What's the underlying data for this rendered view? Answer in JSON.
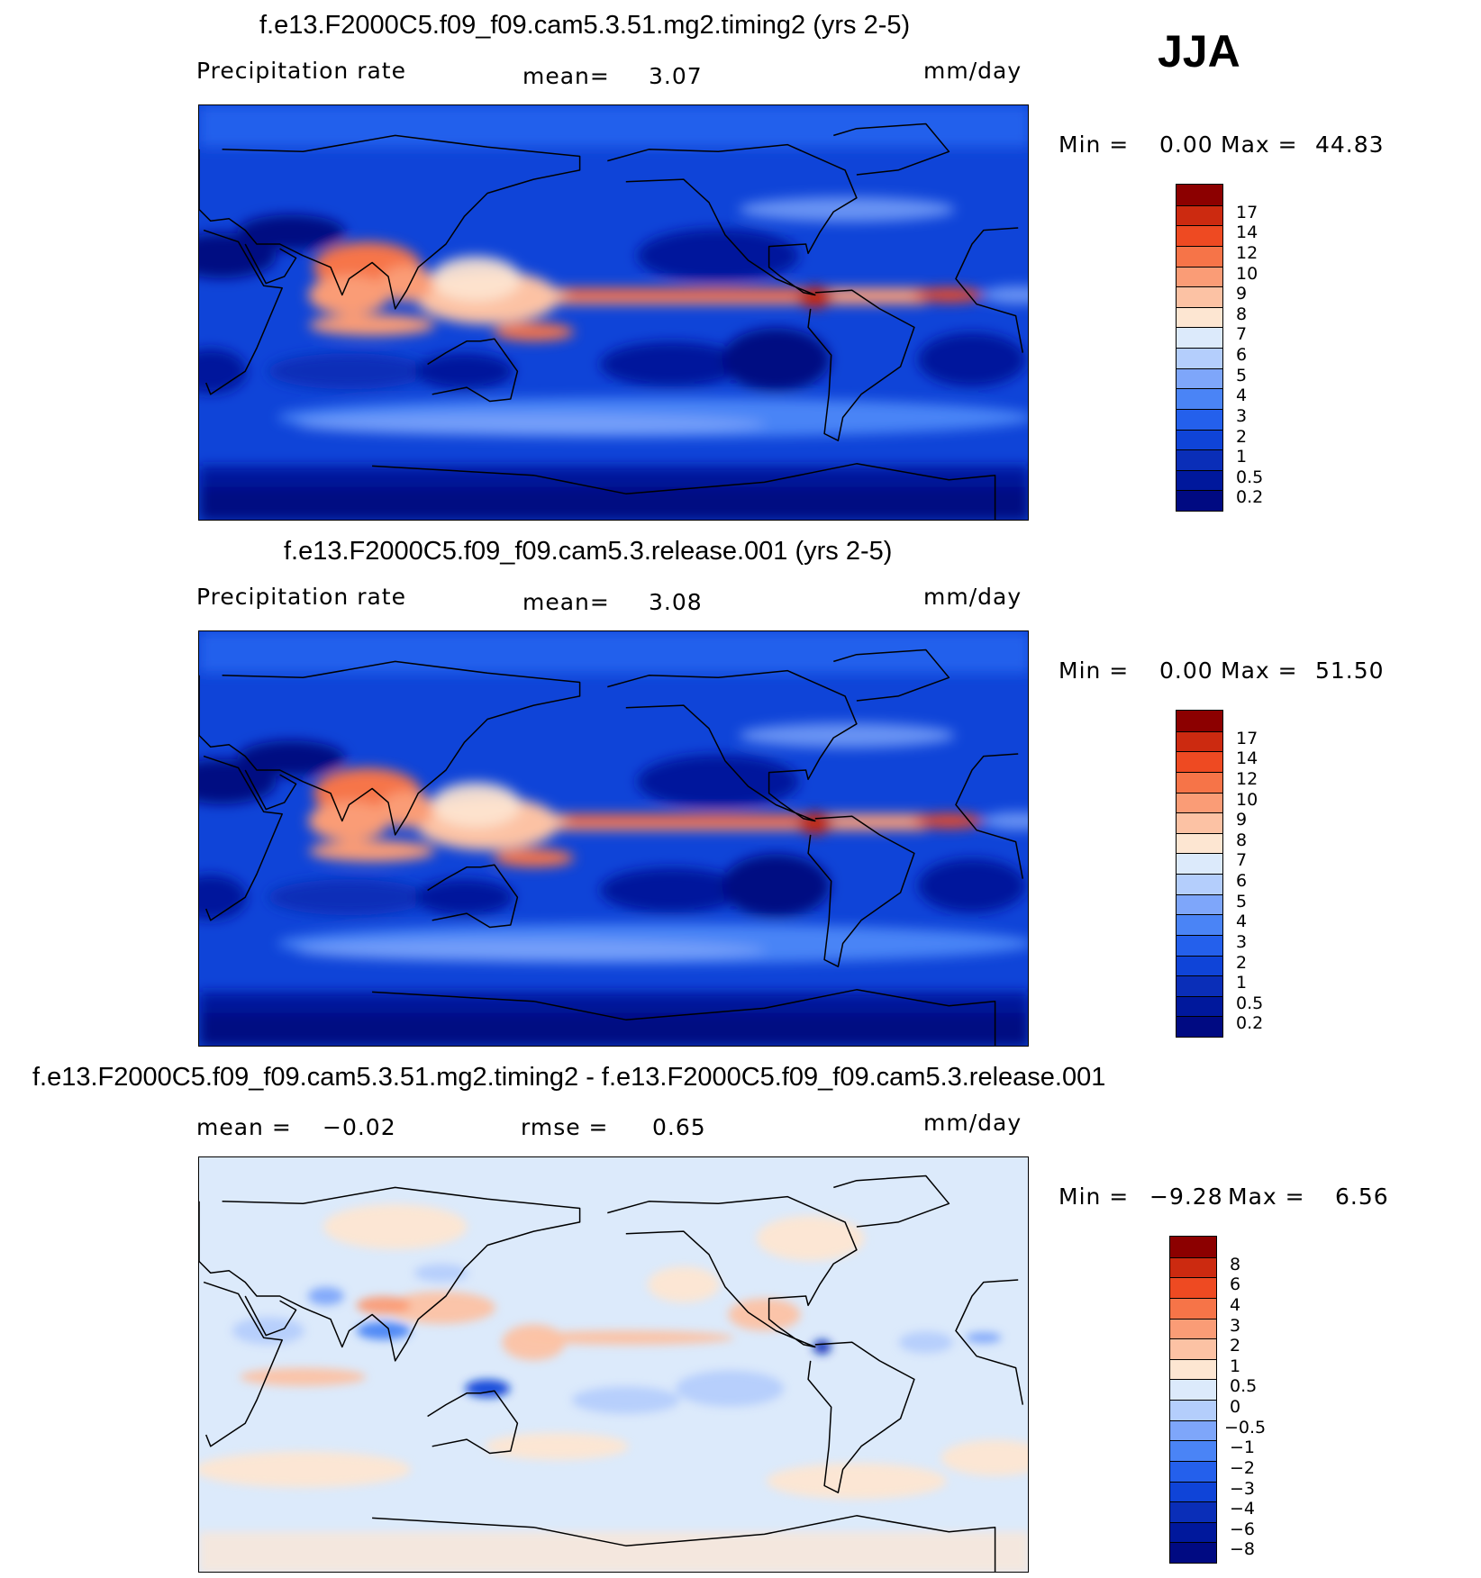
{
  "season": "JJA",
  "panels": [
    {
      "title": "f.e13.F2000C5.f09_f09.cam5.3.51.mg2.timing2 (yrs 2-5)",
      "left_label": "Precipitation  rate",
      "stat1_label": "mean=",
      "stat1_value": "3.07",
      "units": "mm/day",
      "min_label": "Min  =",
      "min_value": "0.00",
      "max_label": "Max  =",
      "max_value": "44.83"
    },
    {
      "title": "f.e13.F2000C5.f09_f09.cam5.3.release.001 (yrs 2-5)",
      "left_label": "Precipitation  rate",
      "stat1_label": "mean=",
      "stat1_value": "3.08",
      "units": "mm/day",
      "min_label": "Min  =",
      "min_value": "0.00",
      "max_label": "Max  =",
      "max_value": "51.50"
    },
    {
      "title": "f.e13.F2000C5.f09_f09.cam5.3.51.mg2.timing2 - f.e13.F2000C5.f09_f09.cam5.3.release.001",
      "left_label": "mean  =",
      "left_value": "−0.02",
      "stat1_label": "rmse  =",
      "stat1_value": "0.65",
      "units": "mm/day",
      "min_label": "Min  =",
      "min_value": "−9.28",
      "max_label": "Max  =",
      "max_value": "6.56"
    }
  ],
  "chart_data": [
    {
      "type": "heatmap",
      "title": "f.e13.F2000C5.f09_f09.cam5.3.51.mg2.timing2 (yrs 2-5)",
      "variable": "Precipitation rate",
      "units": "mm/day",
      "mean": 3.07,
      "min": 0.0,
      "max": 44.83,
      "colorbar_levels": [
        "0.2",
        "0.5",
        "1",
        "2",
        "3",
        "4",
        "5",
        "6",
        "7",
        "8",
        "9",
        "10",
        "12",
        "14",
        "17"
      ],
      "colors": [
        "#000a82",
        "#00189c",
        "#0a2eb8",
        "#0f44d8",
        "#2460ec",
        "#4a84f6",
        "#7ea6fa",
        "#b4cefc",
        "#dceafb",
        "#fde6d2",
        "#fcc2a4",
        "#fa9c76",
        "#f67448",
        "#ee4a22",
        "#cc2a10",
        "#8c0000"
      ],
      "features": [
        "ITCZ precipitation band across tropical Pacific and Atlantic",
        "Indian monsoon maximum",
        "dry subtropical oceans"
      ]
    },
    {
      "type": "heatmap",
      "title": "f.e13.F2000C5.f09_f09.cam5.3.release.001 (yrs 2-5)",
      "variable": "Precipitation rate",
      "units": "mm/day",
      "mean": 3.08,
      "min": 0.0,
      "max": 51.5,
      "colorbar_levels": [
        "0.2",
        "0.5",
        "1",
        "2",
        "3",
        "4",
        "5",
        "6",
        "7",
        "8",
        "9",
        "10",
        "12",
        "14",
        "17"
      ],
      "colors": [
        "#000a82",
        "#00189c",
        "#0a2eb8",
        "#0f44d8",
        "#2460ec",
        "#4a84f6",
        "#7ea6fa",
        "#b4cefc",
        "#dceafb",
        "#fde6d2",
        "#fcc2a4",
        "#fa9c76",
        "#f67448",
        "#ee4a22",
        "#cc2a10",
        "#8c0000"
      ]
    },
    {
      "type": "heatmap",
      "title": "f.e13.F2000C5.f09_f09.cam5.3.51.mg2.timing2 - f.e13.F2000C5.f09_f09.cam5.3.release.001",
      "units": "mm/day",
      "mean": -0.02,
      "rmse": 0.65,
      "min": -9.28,
      "max": 6.56,
      "colorbar_levels": [
        "−8",
        "−6",
        "−4",
        "−3",
        "−2",
        "−1",
        "−0.5",
        "0",
        "0.5",
        "1",
        "2",
        "3",
        "4",
        "6",
        "8"
      ],
      "colors": [
        "#000a82",
        "#00189c",
        "#0a2eb8",
        "#0f44d8",
        "#2460ec",
        "#4a84f6",
        "#7ea6fa",
        "#b4cefc",
        "#dceafb",
        "#fde6d2",
        "#fcc2a4",
        "#fa9c76",
        "#f67448",
        "#ee4a22",
        "#cc2a10",
        "#8c0000"
      ]
    }
  ]
}
